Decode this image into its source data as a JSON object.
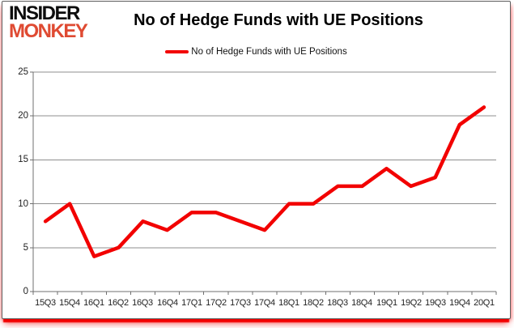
{
  "logo": {
    "line1": "INSIDER",
    "line2": "MONKEY"
  },
  "header": {
    "title": "No of Hedge Funds with UE Positions"
  },
  "legend": {
    "label": "No of Hedge Funds with UE Positions"
  },
  "chart_data": {
    "type": "line",
    "title": "No of Hedge Funds with UE Positions",
    "categories": [
      "15Q3",
      "15Q4",
      "16Q1",
      "16Q2",
      "16Q3",
      "16Q4",
      "17Q1",
      "17Q2",
      "17Q3",
      "17Q4",
      "18Q1",
      "18Q2",
      "18Q3",
      "18Q4",
      "19Q1",
      "19Q2",
      "19Q3",
      "19Q4",
      "20Q1"
    ],
    "series": [
      {
        "name": "No of Hedge Funds with UE Positions",
        "values": [
          8,
          10,
          4,
          5,
          8,
          7,
          9,
          9,
          8,
          7,
          10,
          10,
          12,
          12,
          14,
          12,
          13,
          19,
          21
        ],
        "color": "#f20000"
      }
    ],
    "xlabel": "",
    "ylabel": "",
    "ylim": [
      0,
      25
    ],
    "yticks": [
      0,
      5,
      10,
      15,
      20,
      25
    ],
    "grid": "horizontal",
    "legend_position": "top-center"
  },
  "colors": {
    "series_red": "#f20000",
    "logo_red": "#df4a32",
    "grid_gray": "#8f8f8f",
    "axis_gray": "#6f6f6f",
    "frame_shadow_red": "#f20000",
    "text_dark": "#1f1f1f"
  }
}
